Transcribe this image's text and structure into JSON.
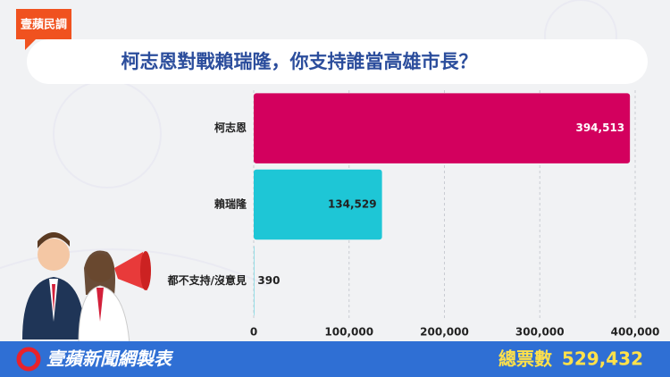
{
  "badge": "壹蘋民調",
  "footer": {
    "source": "壹蘋新聞網製表",
    "total_text": "總票數",
    "total": "529,432"
  },
  "chart_data": {
    "type": "hbar",
    "title": "柯志恩對戰賴瑞隆，你支持誰當高雄市長？",
    "categories": [
      "柯志恩",
      "賴瑞隆",
      "都不支持/沒意見"
    ],
    "values": [
      394513,
      134529,
      390
    ],
    "value_labels": [
      "394,513",
      "134,529",
      "390"
    ],
    "colors": [
      "#d3005e",
      "#1ec6d6",
      "#1ec6d6"
    ],
    "xlim": [
      0,
      400000
    ],
    "xticks": [
      0,
      {
        "value": 100000,
        "label": "100,000"
      },
      {
        "value": 200000,
        "label": "200,000"
      },
      {
        "value": 300000,
        "label": "300,000"
      },
      {
        "value": 400000,
        "label": "400,000"
      }
    ],
    "grid": true
  }
}
